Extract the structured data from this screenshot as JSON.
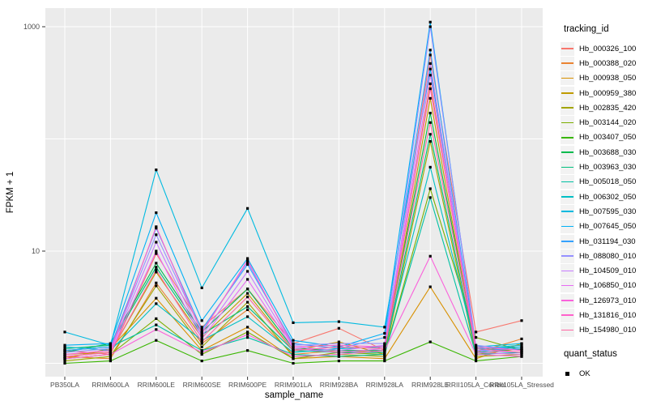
{
  "figure": {
    "background": "#ffffff",
    "panel_background": "#ebebeb",
    "grid_color": "#ffffff",
    "tick_color": "#333333",
    "tick_label_color": "#4d4d4d",
    "axis_title_color": "#000000",
    "point_color": "#000000"
  },
  "chart_data": {
    "type": "line",
    "title": "",
    "xlabel": "sample_name",
    "ylabel": "FPKM + 1",
    "y_scale": "log10",
    "y_tick_labels": [
      "10",
      "1000"
    ],
    "y_ticks": [
      10,
      1000
    ],
    "y_gridlines": [
      1,
      10,
      100,
      1000
    ],
    "ylim": [
      0.75,
      1500
    ],
    "grid": true,
    "legend_position": "right",
    "point_marker": "black-square",
    "categories": [
      "PB350LA",
      "RRIM600LA",
      "RRIM600LE",
      "RRIM600SE",
      "RRIM600PE",
      "RRIM901LA",
      "RRIM928BA",
      "RRIM928LA",
      "RRIM928LE",
      "RRII105LA_Control",
      "RRII105LA_Stressed"
    ],
    "series": [
      {
        "name": "Hb_000326_100",
        "color": "#F8766D",
        "values": [
          1.3,
          1.2,
          9.5,
          2.1,
          4.6,
          1.5,
          2.05,
          1.3,
          560,
          1.9,
          2.4
        ]
      },
      {
        "name": "Hb_000388_020",
        "color": "#EA8331",
        "values": [
          1.15,
          1.1,
          5.2,
          1.5,
          3.0,
          1.2,
          1.3,
          1.25,
          310,
          1.25,
          1.65
        ]
      },
      {
        "name": "Hb_000938_050",
        "color": "#D89000",
        "values": [
          1.1,
          1.35,
          3.8,
          1.3,
          2.1,
          1.1,
          1.15,
          1.1,
          4.8,
          1.1,
          1.5
        ]
      },
      {
        "name": "Hb_000959_380",
        "color": "#C09B00",
        "values": [
          1.2,
          1.25,
          6.5,
          1.7,
          4.2,
          1.3,
          1.55,
          1.2,
          230,
          1.2,
          1.35
        ]
      },
      {
        "name": "Hb_002835_420",
        "color": "#A3A500",
        "values": [
          1.05,
          1.15,
          4.9,
          1.4,
          3.5,
          1.15,
          1.2,
          1.15,
          95,
          1.15,
          1.2
        ]
      },
      {
        "name": "Hb_003144_020",
        "color": "#7CAE00",
        "values": [
          1.1,
          1.2,
          2.5,
          1.2,
          1.9,
          1.1,
          1.25,
          1.2,
          36,
          1.7,
          1.3
        ]
      },
      {
        "name": "Hb_003407_050",
        "color": "#39B600",
        "values": [
          1.0,
          1.05,
          1.6,
          1.05,
          1.3,
          1.0,
          1.05,
          1.05,
          1.55,
          1.05,
          1.15
        ]
      },
      {
        "name": "Hb_003688_030",
        "color": "#00BB4E",
        "values": [
          1.25,
          1.5,
          7.8,
          1.9,
          4.6,
          1.35,
          1.3,
          1.3,
          170,
          1.3,
          1.4
        ]
      },
      {
        "name": "Hb_003963_030",
        "color": "#00BF7D",
        "values": [
          1.35,
          1.45,
          7.2,
          1.8,
          3.2,
          1.3,
          1.25,
          1.25,
          110,
          1.25,
          1.35
        ]
      },
      {
        "name": "Hb_005018_050",
        "color": "#00C1A3",
        "values": [
          1.3,
          1.4,
          2.2,
          1.3,
          1.7,
          1.2,
          1.15,
          1.2,
          30,
          1.2,
          1.25
        ]
      },
      {
        "name": "Hb_006302_050",
        "color": "#00BFC4",
        "values": [
          1.4,
          1.3,
          3.4,
          1.6,
          2.6,
          1.25,
          1.35,
          1.4,
          56,
          1.35,
          1.45
        ]
      },
      {
        "name": "Hb_007595_030",
        "color": "#00BAE0",
        "values": [
          1.9,
          1.45,
          53,
          4.7,
          24,
          2.3,
          2.35,
          2.1,
          420,
          1.4,
          1.5
        ]
      },
      {
        "name": "Hb_007645_050",
        "color": "#00B0F6",
        "values": [
          1.45,
          1.5,
          22,
          2.4,
          8.6,
          1.6,
          1.4,
          1.85,
          1100,
          1.35,
          1.4
        ]
      },
      {
        "name": "Hb_031194_030",
        "color": "#35A2FF",
        "values": [
          1.3,
          1.4,
          16,
          2.0,
          7.6,
          1.5,
          1.35,
          1.7,
          620,
          1.3,
          1.35
        ]
      },
      {
        "name": "Hb_088080_010",
        "color": "#9590FF",
        "values": [
          1.25,
          1.35,
          14,
          1.9,
          8.0,
          1.45,
          1.5,
          1.5,
          1000,
          1.45,
          1.3
        ]
      },
      {
        "name": "Hb_104509_010",
        "color": "#C77CFF",
        "values": [
          1.2,
          1.3,
          12,
          1.75,
          6.6,
          1.4,
          1.3,
          1.45,
          470,
          1.3,
          1.25
        ]
      },
      {
        "name": "Hb_106850_010",
        "color": "#E76BF3",
        "values": [
          1.15,
          1.25,
          10,
          1.65,
          5.6,
          1.35,
          1.25,
          1.35,
          370,
          1.25,
          1.2
        ]
      },
      {
        "name": "Hb_126973_010",
        "color": "#FA62DB",
        "values": [
          1.1,
          1.2,
          2.0,
          1.25,
          1.8,
          1.15,
          1.2,
          1.3,
          9.0,
          1.2,
          1.15
        ]
      },
      {
        "name": "Hb_131816_010",
        "color": "#FF61CC",
        "values": [
          1.2,
          1.3,
          16.5,
          1.85,
          8.3,
          1.4,
          1.45,
          1.4,
          280,
          1.4,
          1.3
        ]
      },
      {
        "name": "Hb_154980_010",
        "color": "#FF67A4",
        "values": [
          1.15,
          1.25,
          6.8,
          1.55,
          3.9,
          1.3,
          1.4,
          1.35,
          140,
          1.35,
          1.25
        ]
      }
    ]
  },
  "legend": {
    "tracking_title": "tracking_id",
    "quant_title": "quant_status",
    "quant_items": [
      {
        "label": "OK"
      }
    ]
  }
}
